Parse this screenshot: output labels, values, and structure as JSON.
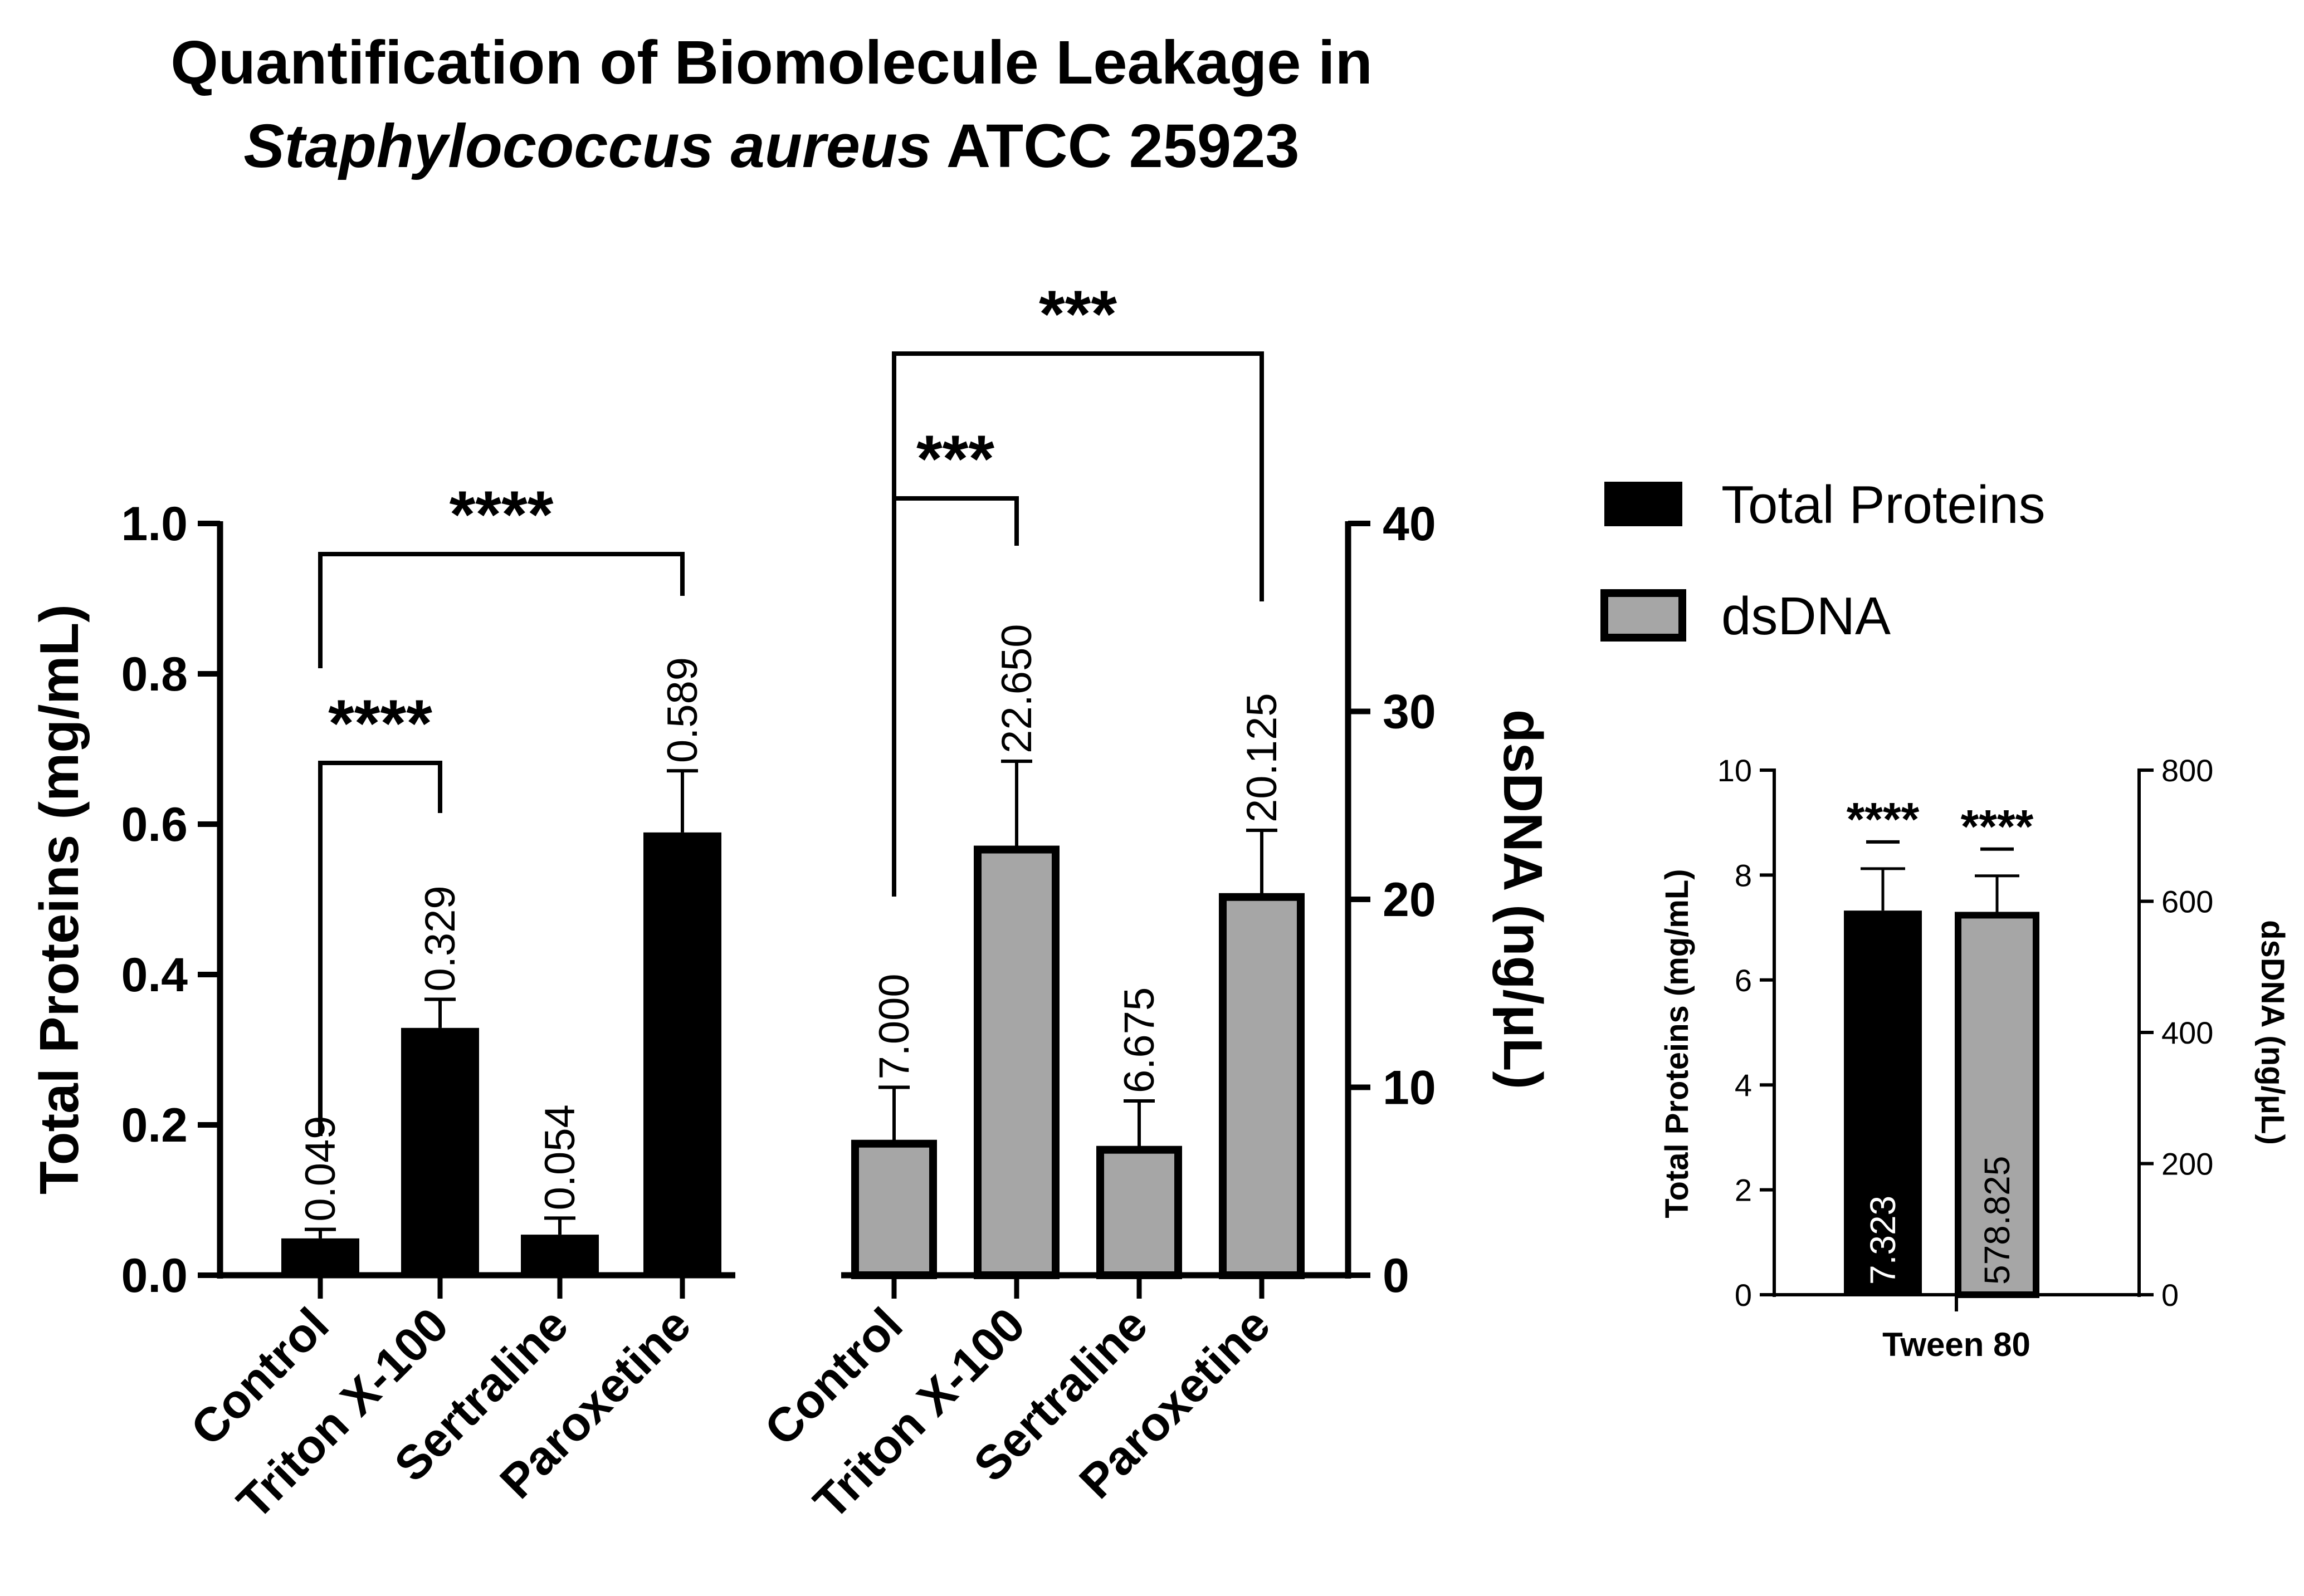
{
  "chart_data": [
    {
      "type": "bar",
      "title_line1": "Quantification of Biomolecule Leakage in",
      "title_species": "Staphylococcus aureus",
      "title_strain": "ATCC 25923",
      "categories": [
        "Control",
        "Triton X-100",
        "Sertraline",
        "Paroxetine"
      ],
      "series": [
        {
          "name": "Total Proteins",
          "axis": "left",
          "color": "#000000",
          "values": [
            0.049,
            0.329,
            0.054,
            0.589
          ],
          "value_labels": [
            "0.049",
            "0.329",
            "0.054",
            "0.589"
          ],
          "errors": [
            0.012,
            0.038,
            0.022,
            0.082
          ]
        },
        {
          "name": "dsDNA",
          "axis": "right",
          "color": "#a6a6a6",
          "values": [
            7.0,
            22.65,
            6.675,
            20.125
          ],
          "value_labels": [
            "7.000",
            "22.650",
            "6.675",
            "20.125"
          ],
          "errors": [
            3.0,
            4.7,
            2.6,
            3.55
          ]
        }
      ],
      "ylabel_left": "Total Proteins (mg/mL)",
      "ylabel_right": "dsDNA (ng/μL)",
      "ylim_left": [
        0,
        1.0
      ],
      "yticks_left": [
        "0.0",
        "0.2",
        "0.4",
        "0.6",
        "0.8",
        "1.0"
      ],
      "ylim_right": [
        0,
        40
      ],
      "yticks_right": [
        "0",
        "10",
        "20",
        "30",
        "40"
      ],
      "significance": [
        {
          "series": 0,
          "from": 0,
          "to": 1,
          "label": "****"
        },
        {
          "series": 0,
          "from": 0,
          "to": 3,
          "label": "****"
        },
        {
          "series": 1,
          "from": 0,
          "to": 1,
          "label": "***"
        },
        {
          "series": 1,
          "from": 0,
          "to": 3,
          "label": "***"
        }
      ],
      "legend": {
        "position": "top-right",
        "entries": [
          "Total Proteins",
          "dsDNA"
        ]
      }
    },
    {
      "type": "bar",
      "categories": [
        "Tween 80"
      ],
      "series": [
        {
          "name": "Total Proteins",
          "axis": "left",
          "color": "#000000",
          "values": [
            7.323
          ],
          "value_labels": [
            "7.323"
          ],
          "errors": [
            0.8
          ]
        },
        {
          "name": "dsDNA",
          "axis": "right",
          "color": "#a6a6a6",
          "values": [
            578.825
          ],
          "value_labels": [
            "578.825"
          ],
          "errors": [
            60
          ]
        }
      ],
      "significance": [
        {
          "series": 0,
          "label": "****"
        },
        {
          "series": 1,
          "label": "****"
        }
      ],
      "ylabel_left": "Total Proteins (mg/mL)",
      "ylabel_right": "dsDNA (ng/μL)",
      "ylim_left": [
        0,
        10
      ],
      "yticks_left": [
        "0",
        "2",
        "4",
        "6",
        "8",
        "10"
      ],
      "ylim_right": [
        0,
        800
      ],
      "yticks_right": [
        "0",
        "200",
        "400",
        "600",
        "800"
      ]
    }
  ]
}
